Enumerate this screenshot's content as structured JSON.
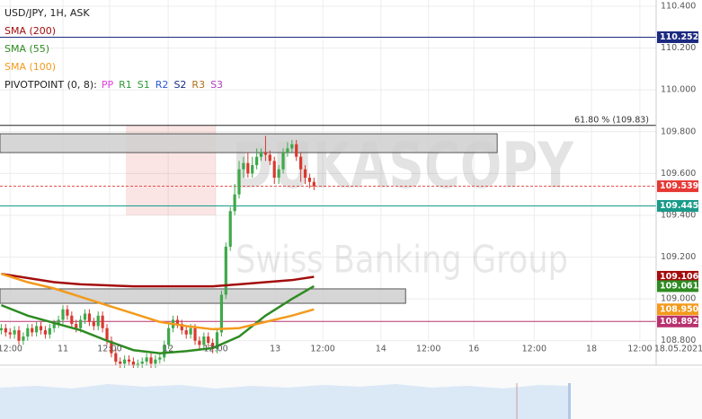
{
  "chart_data": {
    "type": "candlestick",
    "title": "USD/JPY, 1H, ASK",
    "x": [
      -14,
      -13,
      -12,
      -11,
      -10,
      -9,
      -8,
      -7,
      -6,
      -5,
      -4,
      -3,
      -2,
      -1,
      0,
      1,
      2,
      3,
      4,
      5,
      6,
      7,
      8,
      9,
      10,
      11,
      12,
      13,
      14,
      15,
      16,
      17,
      18,
      19,
      20,
      21,
      22,
      23,
      24,
      25,
      26,
      27,
      28,
      29,
      30,
      31,
      32,
      33,
      34,
      35,
      36,
      37,
      38,
      39,
      40,
      41,
      42,
      43,
      44,
      45,
      46,
      47,
      48,
      49,
      50,
      51,
      52,
      53,
      54,
      55,
      56,
      57
    ],
    "open": [
      108.85,
      108.86,
      108.84,
      108.83,
      108.85,
      108.8,
      108.82,
      108.86,
      108.84,
      108.87,
      108.85,
      108.83,
      108.86,
      108.88,
      108.9,
      108.95,
      108.92,
      108.88,
      108.86,
      108.9,
      108.93,
      108.89,
      108.87,
      108.92,
      108.86,
      108.8,
      108.74,
      108.7,
      108.69,
      108.71,
      108.7,
      108.68,
      108.69,
      108.7,
      108.72,
      108.69,
      108.71,
      108.72,
      108.78,
      108.86,
      108.9,
      108.88,
      108.85,
      108.83,
      108.86,
      108.8,
      108.78,
      108.82,
      108.79,
      108.76,
      108.84,
      109.02,
      109.25,
      109.42,
      109.5,
      109.62,
      109.65,
      109.6,
      109.64,
      109.68,
      109.7,
      109.69,
      109.66,
      109.58,
      109.62,
      109.7,
      109.72,
      109.74,
      109.68,
      109.62,
      109.58,
      109.56
    ],
    "high": [
      108.88,
      108.88,
      108.86,
      108.87,
      108.87,
      108.84,
      108.88,
      108.88,
      108.89,
      108.89,
      108.87,
      108.88,
      108.9,
      108.92,
      108.97,
      108.97,
      108.94,
      108.9,
      108.92,
      108.95,
      108.95,
      108.91,
      108.94,
      108.94,
      108.88,
      108.82,
      108.76,
      108.72,
      108.73,
      108.73,
      108.72,
      108.71,
      108.72,
      108.74,
      108.74,
      108.73,
      108.74,
      108.8,
      108.88,
      108.92,
      108.92,
      108.9,
      108.87,
      108.88,
      108.88,
      108.82,
      108.84,
      108.84,
      108.81,
      108.86,
      109.04,
      109.27,
      109.44,
      109.55,
      109.66,
      109.68,
      109.7,
      109.68,
      109.72,
      109.72,
      109.78,
      109.71,
      109.68,
      109.64,
      109.72,
      109.75,
      109.76,
      109.76,
      109.7,
      109.64,
      109.6,
      109.58
    ],
    "low": [
      108.83,
      108.82,
      108.81,
      108.81,
      108.78,
      108.78,
      108.8,
      108.82,
      108.82,
      108.83,
      108.81,
      108.81,
      108.84,
      108.86,
      108.88,
      108.9,
      108.86,
      108.84,
      108.84,
      108.88,
      108.87,
      108.85,
      108.85,
      108.84,
      108.78,
      108.72,
      108.68,
      108.67,
      108.67,
      108.68,
      108.66,
      108.66,
      108.67,
      108.68,
      108.67,
      108.67,
      108.69,
      108.7,
      108.76,
      108.84,
      108.86,
      108.83,
      108.81,
      108.81,
      108.78,
      108.76,
      108.76,
      108.77,
      108.74,
      108.74,
      108.82,
      109.0,
      109.23,
      109.4,
      109.48,
      109.58,
      109.58,
      109.58,
      109.62,
      109.66,
      109.66,
      109.64,
      109.55,
      109.55,
      109.6,
      109.68,
      109.7,
      109.66,
      109.56,
      109.55,
      109.53,
      109.52
    ],
    "close": [
      108.86,
      108.84,
      108.83,
      108.85,
      108.8,
      108.82,
      108.86,
      108.84,
      108.87,
      108.85,
      108.83,
      108.86,
      108.88,
      108.9,
      108.95,
      108.92,
      108.88,
      108.86,
      108.9,
      108.93,
      108.89,
      108.87,
      108.92,
      108.86,
      108.8,
      108.74,
      108.7,
      108.69,
      108.71,
      108.7,
      108.68,
      108.69,
      108.7,
      108.72,
      108.69,
      108.71,
      108.72,
      108.78,
      108.86,
      108.9,
      108.88,
      108.85,
      108.83,
      108.86,
      108.8,
      108.78,
      108.82,
      108.79,
      108.76,
      108.84,
      109.02,
      109.25,
      109.42,
      109.5,
      109.62,
      109.65,
      109.6,
      109.64,
      109.68,
      109.7,
      109.69,
      109.66,
      109.58,
      109.62,
      109.7,
      109.72,
      109.74,
      109.68,
      109.62,
      109.58,
      109.56,
      109.539
    ],
    "up_color": "#3ea94a",
    "down_color": "#d8392f",
    "xlim": [
      -14.29,
      145.1
    ],
    "ylim": [
      108.683,
      110.43
    ],
    "xticks": [
      {
        "value": -12,
        "label": "12:00"
      },
      {
        "value": 0,
        "label": "11"
      },
      {
        "value": 10.6,
        "label": "12:00"
      },
      {
        "value": 23.9,
        "label": "12"
      },
      {
        "value": 34.7,
        "label": "12:00"
      },
      {
        "value": 48.2,
        "label": "13"
      },
      {
        "value": 59,
        "label": "12:00"
      },
      {
        "value": 72.2,
        "label": "14"
      },
      {
        "value": 83,
        "label": "12:00"
      },
      {
        "value": 93.3,
        "label": "16"
      },
      {
        "value": 107,
        "label": "12:00"
      },
      {
        "value": 120,
        "label": "18"
      },
      {
        "value": 131,
        "label": "12:00"
      },
      {
        "value": 139.8,
        "label": "18.05.2021"
      }
    ],
    "yticks": [
      {
        "value": 110.4,
        "label": "110.400"
      },
      {
        "value": 110.2,
        "label": "110.200"
      },
      {
        "value": 110.0,
        "label": "110.000"
      },
      {
        "value": 109.8,
        "label": "109.800"
      },
      {
        "value": 109.6,
        "label": "109.600"
      },
      {
        "value": 109.4,
        "label": "109.400"
      },
      {
        "value": 109.2,
        "label": "109.200"
      },
      {
        "value": 109.0,
        "label": "109.000"
      },
      {
        "value": 108.8,
        "label": "108.800"
      }
    ],
    "grid": true,
    "series": [
      {
        "name": "SMA (200)",
        "color": "#a30d0d",
        "x": [
          -14,
          -8,
          -2,
          4,
          10,
          16,
          22,
          28,
          34,
          40,
          46,
          52,
          57
        ],
        "values": [
          109.12,
          109.1,
          109.08,
          109.07,
          109.065,
          109.06,
          109.06,
          109.06,
          109.06,
          109.07,
          109.08,
          109.09,
          109.106
        ],
        "last_label": "109.106"
      },
      {
        "name": "SMA (55)",
        "color": "#2e8b22",
        "x": [
          -14,
          -8,
          -2,
          4,
          10,
          16,
          22,
          28,
          34,
          40,
          46,
          52,
          57
        ],
        "values": [
          108.97,
          108.92,
          108.885,
          108.85,
          108.8,
          108.755,
          108.74,
          108.75,
          108.765,
          108.82,
          108.92,
          109.0,
          109.061
        ],
        "last_label": "109.061"
      },
      {
        "name": "SMA (100)",
        "color": "#f39a1c",
        "x": [
          -14,
          -8,
          -2,
          4,
          10,
          16,
          22,
          28,
          34,
          40,
          46,
          52,
          57
        ],
        "values": [
          109.12,
          109.08,
          109.05,
          109.01,
          108.97,
          108.93,
          108.89,
          108.87,
          108.855,
          108.86,
          108.89,
          108.92,
          108.95
        ],
        "last_label": "108.950"
      }
    ],
    "pivot_legend": {
      "title": "PIVOTPOINT (0, 8):",
      "items": [
        {
          "name": "PP",
          "color": "#e040e0"
        },
        {
          "name": "R1",
          "color": "#2e9b3a"
        },
        {
          "name": "S1",
          "color": "#2e9b3a"
        },
        {
          "name": "R2",
          "color": "#2a5bd7"
        },
        {
          "name": "S2",
          "color": "#1a2a8a"
        },
        {
          "name": "R3",
          "color": "#b0701a"
        },
        {
          "name": "S3",
          "color": "#b040c0"
        }
      ]
    },
    "levels": [
      {
        "value": 110.252,
        "label": "110.252",
        "color": "#1c2a80"
      },
      {
        "value": 109.539,
        "label": "109.539",
        "color": "#e53935",
        "dashed": true
      },
      {
        "value": 109.445,
        "label": "109.445",
        "color": "#1a9a8a"
      },
      {
        "value": 108.892,
        "label": "108.892",
        "color": "#b8326e"
      }
    ],
    "fib": {
      "value": 109.83,
      "label": "61.80 % (109.83)"
    },
    "zones": [
      {
        "x": [
          -14.29,
          98.6
        ],
        "y": [
          109.7,
          109.79
        ]
      },
      {
        "x": [
          -14.29,
          77.8
        ],
        "y": [
          108.979,
          109.048
        ]
      }
    ],
    "watermark": {
      "brand": "DUKASCOPY",
      "tagline": "Swiss Banking Group"
    }
  }
}
